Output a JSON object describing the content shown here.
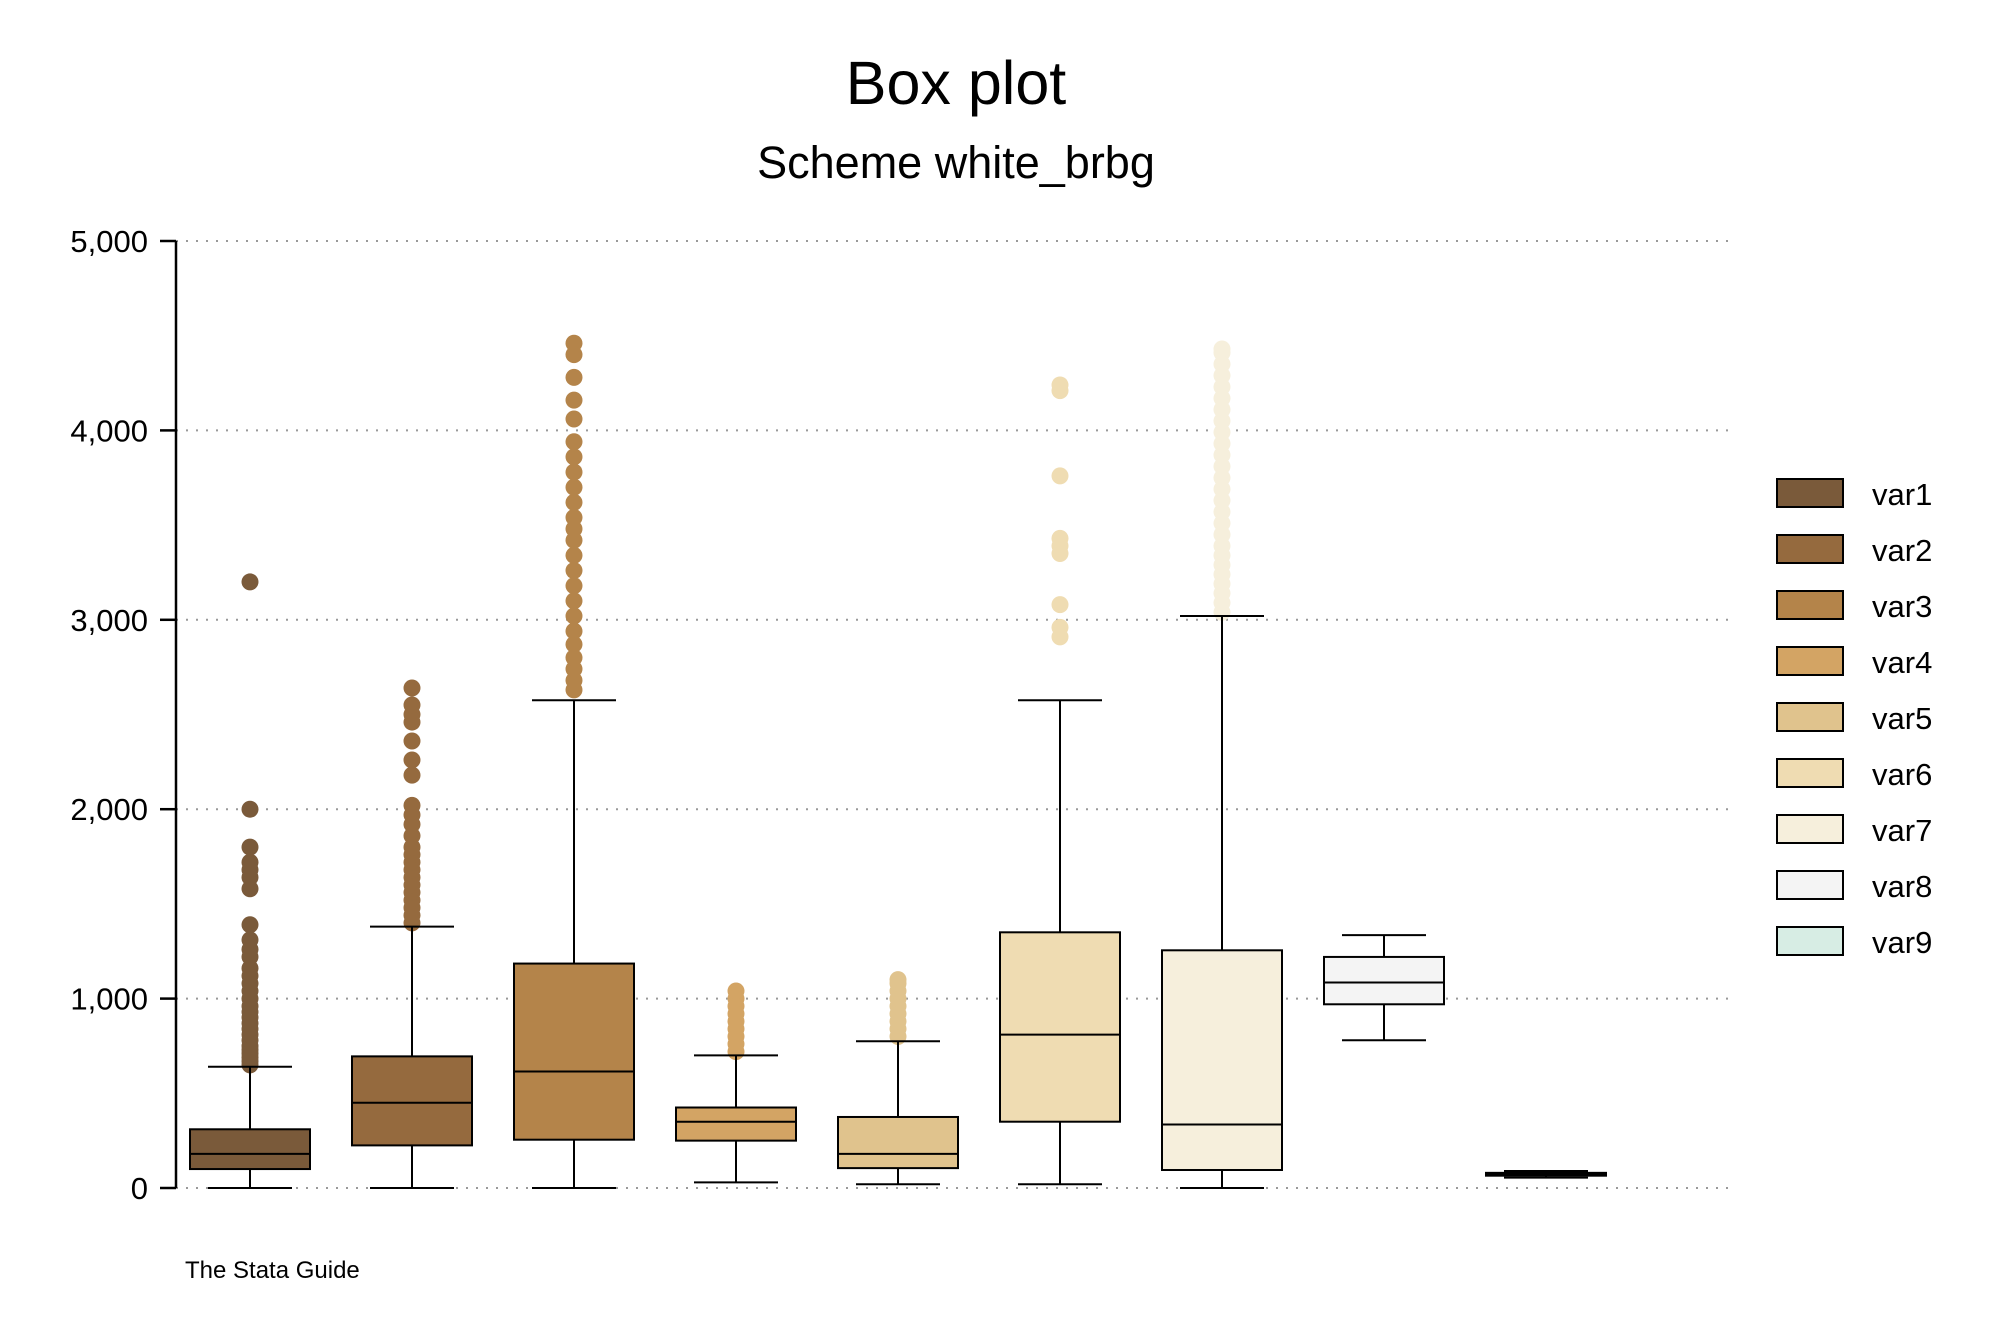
{
  "chart_data": {
    "type": "box",
    "title": "Box plot",
    "subtitle": "Scheme white_brbg",
    "note": "The Stata Guide",
    "ylim": [
      0,
      5000
    ],
    "yticks": [
      0,
      1000,
      2000,
      3000,
      4000,
      5000
    ],
    "ytick_labels": [
      "0",
      "1,000",
      "2,000",
      "3,000",
      "4,000",
      "5,000"
    ],
    "grid": true,
    "legend_position": "right",
    "series": [
      {
        "name": "var1",
        "color": "#7a5a3a",
        "whisker_low": 0,
        "q1": 100,
        "median": 180,
        "q3": 310,
        "whisker_high": 640,
        "outliers": [
          650,
          670,
          690,
          710,
          730,
          750,
          780,
          810,
          840,
          870,
          900,
          930,
          960,
          1000,
          1040,
          1080,
          1120,
          1160,
          1220,
          1260,
          1310,
          1390,
          1580,
          1640,
          1680,
          1720,
          1800,
          2000,
          3200
        ]
      },
      {
        "name": "var2",
        "color": "#956a3e",
        "whisker_low": 0,
        "q1": 225,
        "median": 450,
        "q3": 695,
        "whisker_high": 1380,
        "outliers": [
          1400,
          1440,
          1480,
          1520,
          1560,
          1600,
          1640,
          1680,
          1720,
          1760,
          1800,
          1860,
          1920,
          1970,
          2020,
          2180,
          2260,
          2360,
          2460,
          2500,
          2550,
          2640
        ]
      },
      {
        "name": "var3",
        "color": "#b4844a",
        "whisker_low": 0,
        "q1": 255,
        "median": 615,
        "q3": 1185,
        "whisker_high": 2575,
        "outliers": [
          2630,
          2680,
          2740,
          2800,
          2870,
          2940,
          3020,
          3100,
          3180,
          3260,
          3340,
          3420,
          3480,
          3540,
          3620,
          3700,
          3780,
          3860,
          3940,
          4060,
          4160,
          4280,
          4400,
          4460
        ]
      },
      {
        "name": "var4",
        "color": "#d3a464",
        "whisker_low": 30,
        "q1": 250,
        "median": 350,
        "q3": 425,
        "whisker_high": 700,
        "outliers": [
          720,
          760,
          800,
          840,
          880,
          920,
          960,
          1000,
          1040
        ]
      },
      {
        "name": "var5",
        "color": "#e0c38d",
        "whisker_low": 20,
        "q1": 105,
        "median": 180,
        "q3": 375,
        "whisker_high": 775,
        "outliers": [
          800,
          840,
          880,
          920,
          960,
          1000,
          1040,
          1080,
          1100
        ]
      },
      {
        "name": "var6",
        "color": "#efdcb2",
        "whisker_low": 20,
        "q1": 350,
        "median": 810,
        "q3": 1350,
        "whisker_high": 2575,
        "outliers": [
          2910,
          2960,
          3080,
          3350,
          3390,
          3430,
          3760,
          4210,
          4240
        ]
      },
      {
        "name": "var7",
        "color": "#f6efdc",
        "whisker_low": 0,
        "q1": 95,
        "median": 335,
        "q3": 1255,
        "whisker_high": 3020,
        "outliers": [
          3040,
          3090,
          3140,
          3190,
          3240,
          3290,
          3340,
          3390,
          3450,
          3510,
          3570,
          3630,
          3690,
          3750,
          3810,
          3870,
          3930,
          3990,
          4050,
          4110,
          4170,
          4230,
          4290,
          4350,
          4410,
          4430
        ]
      },
      {
        "name": "var8",
        "color": "#f4f4f4",
        "whisker_low": 780,
        "q1": 970,
        "median": 1085,
        "q3": 1220,
        "whisker_high": 1335,
        "outliers": []
      },
      {
        "name": "var9",
        "color": "#d7ede4",
        "whisker_low": 55,
        "q1": 65,
        "median": 72,
        "q3": 80,
        "whisker_high": 90,
        "outliers": []
      }
    ]
  }
}
